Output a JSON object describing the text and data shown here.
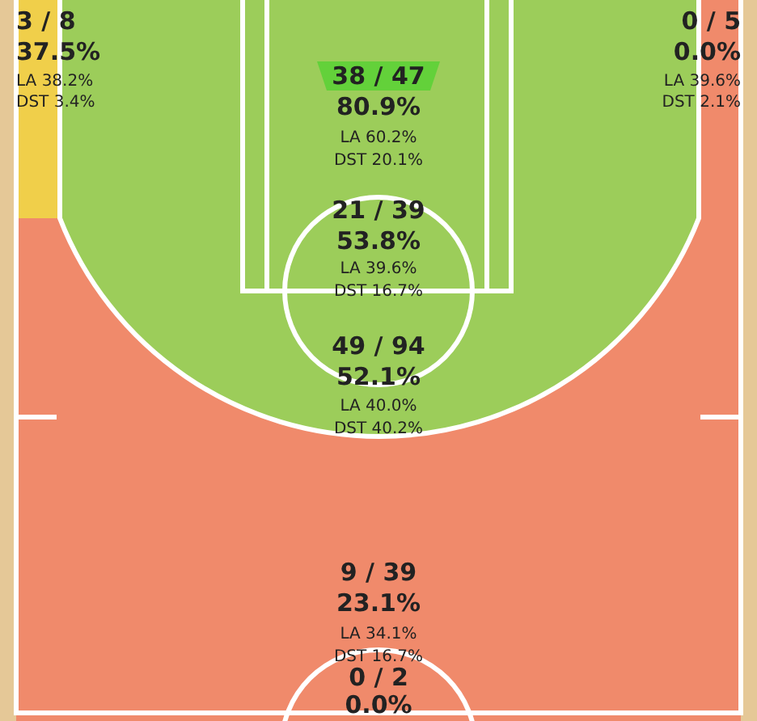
{
  "chart_data": {
    "type": "other",
    "categories": [
      null,
      null,
      null,
      null,
      null,
      null,
      null
    ],
    "values": [
      37.5,
      0.0,
      80.9,
      53.8,
      52.1,
      23.1,
      0.0
    ],
    "value_labels": [
      "37.5%",
      "0.0%",
      "80.9%",
      "53.8%",
      "52.1%",
      "23.1%",
      "0.0%"
    ],
    "colors": [
      "#f0cf4a",
      "#f08a6b",
      "#63d13a",
      "#9ccd5a",
      "#9ccd5a",
      "#f08a6b",
      "#f08a6b"
    ],
    "annotations": [
      "3 / 8",
      "LA 38.2%",
      "DST 3.4%",
      "0 / 5",
      "LA 39.6%",
      "DST 2.1%",
      "38 / 47",
      "LA 60.2%",
      "DST 20.1%",
      "21 / 39",
      "LA 39.6%",
      "DST 16.7%",
      "49 / 94",
      "LA 40.0%",
      "DST 40.2%",
      "9 / 39",
      "LA 34.1%",
      "DST 16.7%",
      "0 / 2"
    ]
  }
}
